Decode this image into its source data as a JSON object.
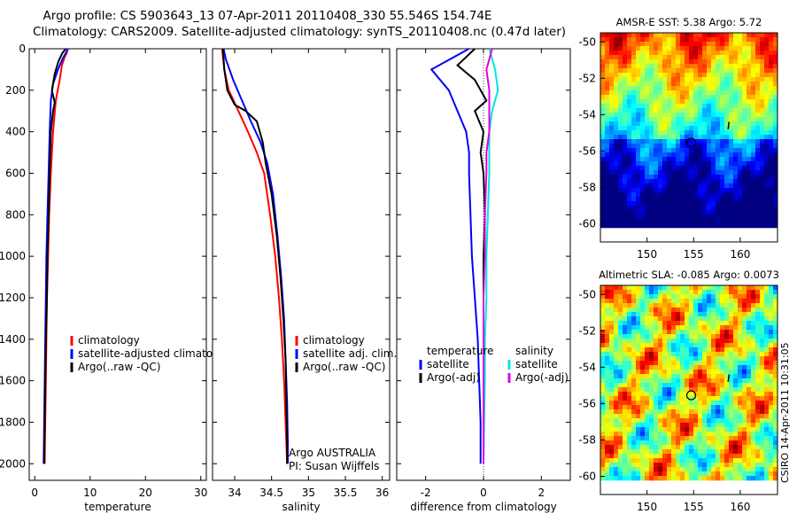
{
  "title_line1": "Argo profile: CS 5903643_13 07-Apr-2011 20110408_330 55.546S 154.74E",
  "title_line2": "Climatology: CARS2009. Satellite-adjusted climatology: synTS_20110408.nc (0.47d later)",
  "side_stamp": "CSIRO 14-Apr-2011 10:31:05",
  "colors": {
    "climatology": "#ff0000",
    "satellite": "#0000ff",
    "argo": "#000000",
    "sal_satellite": "#00e5e5",
    "sal_argo": "#e000e0"
  },
  "chart_data": [
    {
      "type": "line",
      "xlabel": "temperature",
      "ylabel": "",
      "xlim": [
        -1,
        31
      ],
      "ylim": [
        2080,
        0
      ],
      "xticks": [
        0,
        10,
        20,
        30
      ],
      "yticks": [
        0,
        200,
        400,
        600,
        800,
        1000,
        1200,
        1400,
        1600,
        1800,
        2000
      ],
      "legend": [
        "climatology",
        "satellite-adjusted climatolog",
        "Argo(..raw -QC)"
      ],
      "series": [
        {
          "name": "climatology",
          "color": "#ff0000",
          "points": [
            [
              5.9,
              0
            ],
            [
              5.8,
              20
            ],
            [
              5.4,
              40
            ],
            [
              4.9,
              80
            ],
            [
              4.5,
              150
            ],
            [
              3.8,
              250
            ],
            [
              3.3,
              400
            ],
            [
              2.9,
              600
            ],
            [
              2.6,
              800
            ],
            [
              2.4,
              1000
            ],
            [
              2.2,
              1200
            ],
            [
              2.1,
              1400
            ],
            [
              2.0,
              1600
            ],
            [
              1.9,
              1800
            ],
            [
              1.8,
              2000
            ]
          ]
        },
        {
          "name": "satellite-adjusted climatolog",
          "color": "#0000ff",
          "points": [
            [
              6.0,
              0
            ],
            [
              5.6,
              20
            ],
            [
              5.0,
              50
            ],
            [
              4.2,
              100
            ],
            [
              3.3,
              170
            ],
            [
              2.9,
              250
            ],
            [
              2.7,
              400
            ],
            [
              2.5,
              600
            ],
            [
              2.3,
              800
            ],
            [
              2.1,
              1000
            ],
            [
              2.0,
              1200
            ],
            [
              1.9,
              1400
            ],
            [
              1.8,
              1600
            ],
            [
              1.7,
              1800
            ],
            [
              1.6,
              2000
            ]
          ]
        },
        {
          "name": "Argo(..raw -QC)",
          "color": "#000000",
          "points": [
            [
              5.6,
              0
            ],
            [
              5.0,
              20
            ],
            [
              4.3,
              60
            ],
            [
              3.6,
              120
            ],
            [
              3.1,
              200
            ],
            [
              3.6,
              260
            ],
            [
              3.3,
              300
            ],
            [
              2.9,
              400
            ],
            [
              2.7,
              600
            ],
            [
              2.5,
              800
            ],
            [
              2.3,
              1000
            ],
            [
              2.2,
              1200
            ],
            [
              2.0,
              1400
            ],
            [
              1.9,
              1600
            ],
            [
              1.8,
              1800
            ],
            [
              1.7,
              2000
            ]
          ]
        }
      ]
    },
    {
      "type": "line",
      "xlabel": "salinity",
      "ylabel": "",
      "xlim": [
        33.7,
        36.1
      ],
      "ylim": [
        2080,
        0
      ],
      "xticks": [
        34,
        34.5,
        35,
        35.5,
        36
      ],
      "xticklabels": [
        "34",
        "34.5",
        "35",
        "35.5",
        "36"
      ],
      "legend": [
        "climatology",
        "satellite adj. clim.",
        "Argo(..raw -QC)"
      ],
      "annotations": [
        "Argo AUSTRALIA",
        "PI: Susan Wijffels"
      ],
      "series": [
        {
          "name": "climatology",
          "color": "#ff0000",
          "points": [
            [
              33.83,
              0
            ],
            [
              33.86,
              100
            ],
            [
              33.92,
              200
            ],
            [
              34.05,
              300
            ],
            [
              34.18,
              400
            ],
            [
              34.3,
              500
            ],
            [
              34.4,
              600
            ],
            [
              34.48,
              800
            ],
            [
              34.55,
              1000
            ],
            [
              34.6,
              1200
            ],
            [
              34.64,
              1400
            ],
            [
              34.67,
              1600
            ],
            [
              34.69,
              1800
            ],
            [
              34.71,
              2000
            ]
          ]
        },
        {
          "name": "satellite adj. clim.",
          "color": "#0000ff",
          "points": [
            [
              33.85,
              0
            ],
            [
              33.88,
              50
            ],
            [
              33.98,
              150
            ],
            [
              34.1,
              250
            ],
            [
              34.22,
              350
            ],
            [
              34.35,
              450
            ],
            [
              34.44,
              550
            ],
            [
              34.52,
              700
            ],
            [
              34.58,
              900
            ],
            [
              34.63,
              1100
            ],
            [
              34.67,
              1300
            ],
            [
              34.69,
              1500
            ],
            [
              34.71,
              1700
            ],
            [
              34.72,
              1900
            ],
            [
              34.72,
              2000
            ]
          ]
        },
        {
          "name": "Argo(..raw -QC)",
          "color": "#000000",
          "points": [
            [
              33.84,
              0
            ],
            [
              33.86,
              100
            ],
            [
              33.9,
              200
            ],
            [
              34.0,
              270
            ],
            [
              34.15,
              300
            ],
            [
              34.3,
              350
            ],
            [
              34.38,
              450
            ],
            [
              34.42,
              550
            ],
            [
              34.5,
              700
            ],
            [
              34.57,
              900
            ],
            [
              34.62,
              1100
            ],
            [
              34.66,
              1300
            ],
            [
              34.69,
              1500
            ],
            [
              34.7,
              1700
            ],
            [
              34.71,
              1900
            ],
            [
              34.71,
              2000
            ]
          ]
        }
      ]
    },
    {
      "type": "line",
      "xlabel": "difference from climatology",
      "ylabel": "",
      "xlim": [
        -3,
        3
      ],
      "ylim": [
        2080,
        0
      ],
      "xticks": [
        -2,
        0,
        2
      ],
      "xticklabels": [
        "-2",
        "0",
        "2"
      ],
      "legend_titles": [
        "temperature",
        "salinity"
      ],
      "legend": [
        "satellite",
        "Argo(-adj)",
        "satellite",
        "Argo(-adj)"
      ],
      "series": [
        {
          "name": "satellite",
          "color": "#0000ff",
          "points": [
            [
              -0.5,
              0
            ],
            [
              -1.8,
              100
            ],
            [
              -1.2,
              200
            ],
            [
              -0.9,
              300
            ],
            [
              -0.6,
              400
            ],
            [
              -0.5,
              500
            ],
            [
              -0.5,
              600
            ],
            [
              -0.45,
              800
            ],
            [
              -0.4,
              1000
            ],
            [
              -0.3,
              1200
            ],
            [
              -0.2,
              1400
            ],
            [
              -0.15,
              1600
            ],
            [
              -0.1,
              1800
            ],
            [
              -0.1,
              2000
            ]
          ]
        },
        {
          "name": "Argo(-adj)",
          "color": "#000000",
          "points": [
            [
              -0.3,
              0
            ],
            [
              -0.9,
              80
            ],
            [
              -0.3,
              150
            ],
            [
              0.1,
              250
            ],
            [
              -0.3,
              300
            ],
            [
              0.0,
              400
            ],
            [
              -0.1,
              500
            ],
            [
              0.0,
              600
            ],
            [
              0.05,
              800
            ],
            [
              0.0,
              1000
            ],
            [
              0.0,
              1200
            ],
            [
              0.0,
              1400
            ],
            [
              0.0,
              1600
            ],
            [
              0.0,
              1800
            ],
            [
              0.0,
              2000
            ]
          ]
        },
        {
          "name": "satellite",
          "color": "#00e5e5",
          "points": [
            [
              0.2,
              0
            ],
            [
              0.4,
              100
            ],
            [
              0.5,
              200
            ],
            [
              0.3,
              300
            ],
            [
              0.2,
              400
            ],
            [
              0.2,
              500
            ],
            [
              0.2,
              600
            ],
            [
              0.15,
              800
            ],
            [
              0.1,
              1000
            ],
            [
              0.1,
              1200
            ],
            [
              0.05,
              1400
            ],
            [
              0.05,
              1600
            ],
            [
              0.02,
              1800
            ],
            [
              0.0,
              2000
            ]
          ]
        },
        {
          "name": "Argo(-adj)",
          "color": "#e000e0",
          "points": [
            [
              0.3,
              0
            ],
            [
              0.1,
              100
            ],
            [
              0.2,
              200
            ],
            [
              0.2,
              300
            ],
            [
              0.2,
              400
            ],
            [
              0.1,
              500
            ],
            [
              0.1,
              600
            ],
            [
              0.05,
              800
            ],
            [
              0.05,
              1000
            ],
            [
              0.0,
              1200
            ],
            [
              0.0,
              1400
            ],
            [
              0.0,
              1600
            ],
            [
              0.0,
              1800
            ],
            [
              0.0,
              2000
            ]
          ]
        }
      ]
    },
    {
      "type": "heatmap",
      "title": "AMSR-E SST: 5.38 Argo: 5.72",
      "xlim": [
        145,
        164
      ],
      "ylim": [
        -61,
        -49.5
      ],
      "xticks": [
        150,
        155,
        160
      ],
      "yticks": [
        -50,
        -52,
        -54,
        -56,
        -58,
        -60
      ],
      "marker": [
        154.74,
        -55.546
      ]
    },
    {
      "type": "heatmap",
      "title": "Altimetric SLA: -0.085 Argo: 0.0073",
      "xlim": [
        145,
        164
      ],
      "ylim": [
        -61,
        -49.5
      ],
      "xticks": [
        150,
        155,
        160
      ],
      "yticks": [
        -50,
        -52,
        -54,
        -56,
        -58,
        -60
      ],
      "marker": [
        154.74,
        -55.546
      ]
    }
  ]
}
